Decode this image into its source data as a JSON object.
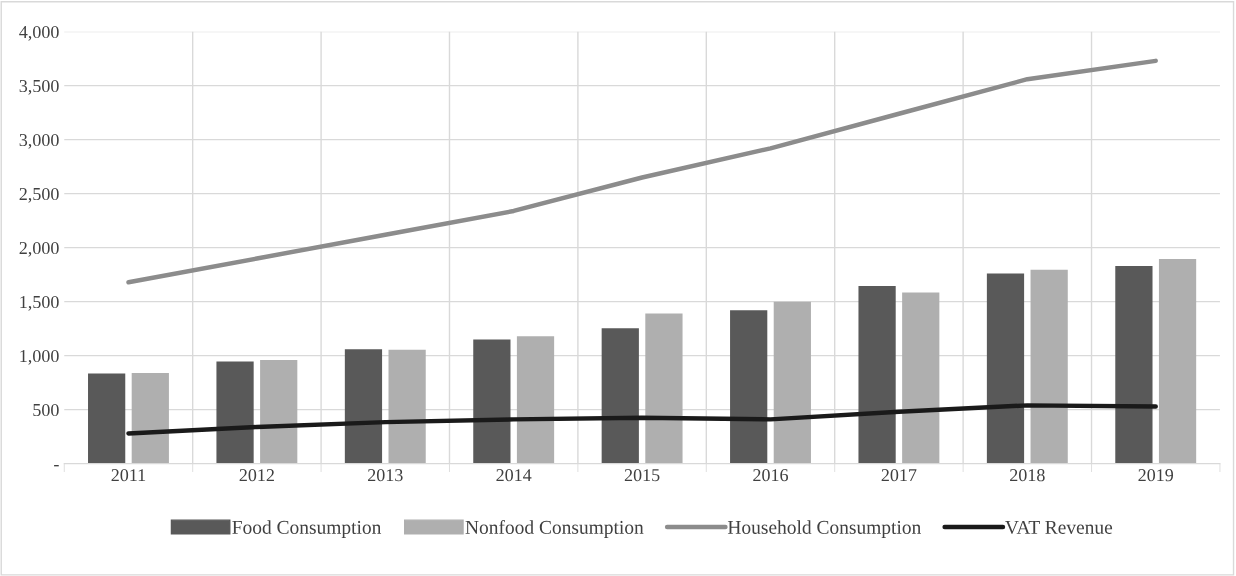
{
  "chart_data": {
    "type": "bar",
    "categories": [
      "2011",
      "2012",
      "2013",
      "2014",
      "2015",
      "2016",
      "2017",
      "2018",
      "2019"
    ],
    "series": [
      {
        "name": "Food Consumption",
        "color": "#595959",
        "values": [
          835,
          945,
          1060,
          1150,
          1255,
          1420,
          1645,
          1760,
          1830
        ]
      },
      {
        "name": "Nonfood Consumption",
        "color": "#afafaf",
        "values": [
          840,
          960,
          1055,
          1180,
          1390,
          1500,
          1585,
          1795,
          1895
        ]
      },
      {
        "name": "Household Consumption",
        "type": "line",
        "color": "#8c8c8c",
        "values": [
          1680,
          1900,
          2120,
          2340,
          2650,
          2920,
          3240,
          3560,
          3730
        ]
      },
      {
        "name": "VAT Revenue",
        "type": "line",
        "color": "#1a1a1a",
        "values": [
          280,
          340,
          385,
          410,
          425,
          410,
          480,
          540,
          530
        ]
      }
    ],
    "ylim": [
      0,
      4000
    ],
    "yticks": [
      {
        "value": 0,
        "label": "-"
      },
      {
        "value": 500,
        "label": "500"
      },
      {
        "value": 1000,
        "label": "1,000"
      },
      {
        "value": 1500,
        "label": "1,500"
      },
      {
        "value": 2000,
        "label": "2,000"
      },
      {
        "value": 2500,
        "label": "2,500"
      },
      {
        "value": 3000,
        "label": "3,000"
      },
      {
        "value": 3500,
        "label": "3,500"
      },
      {
        "value": 4000,
        "label": "4,000"
      }
    ],
    "grid": true,
    "legend": "bottom",
    "marker": "none"
  }
}
